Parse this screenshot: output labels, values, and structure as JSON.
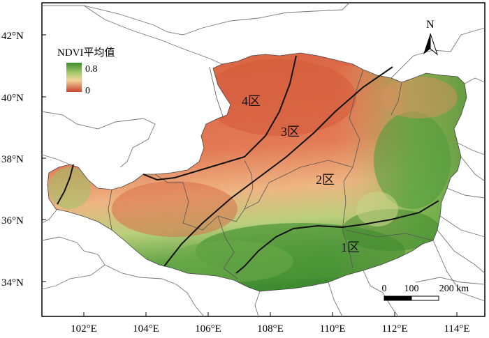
{
  "map": {
    "lat_ticks": [
      "42°N",
      "40°N",
      "38°N",
      "36°N",
      "34°N"
    ],
    "lon_ticks": [
      "102°E",
      "104°E",
      "106°E",
      "108°E",
      "110°E",
      "112°E",
      "114°E"
    ],
    "legend": {
      "title": "NDVI平均值",
      "max_label": "0.8",
      "min_label": "0",
      "color_high": "#4f9a3a",
      "color_low": "#c9553a"
    },
    "zones": [
      "4区",
      "3区",
      "2区",
      "1区"
    ],
    "north_arrow_label": "N",
    "scale_bar": {
      "labels": [
        "0",
        "100",
        "200 km"
      ]
    },
    "colors": {
      "ndvi_low": "#d9664a",
      "ndvi_mid": "#e8a474",
      "ndvi_high": "#4e9a3c",
      "boundary": "#555555",
      "zone_line": "#111111"
    }
  }
}
